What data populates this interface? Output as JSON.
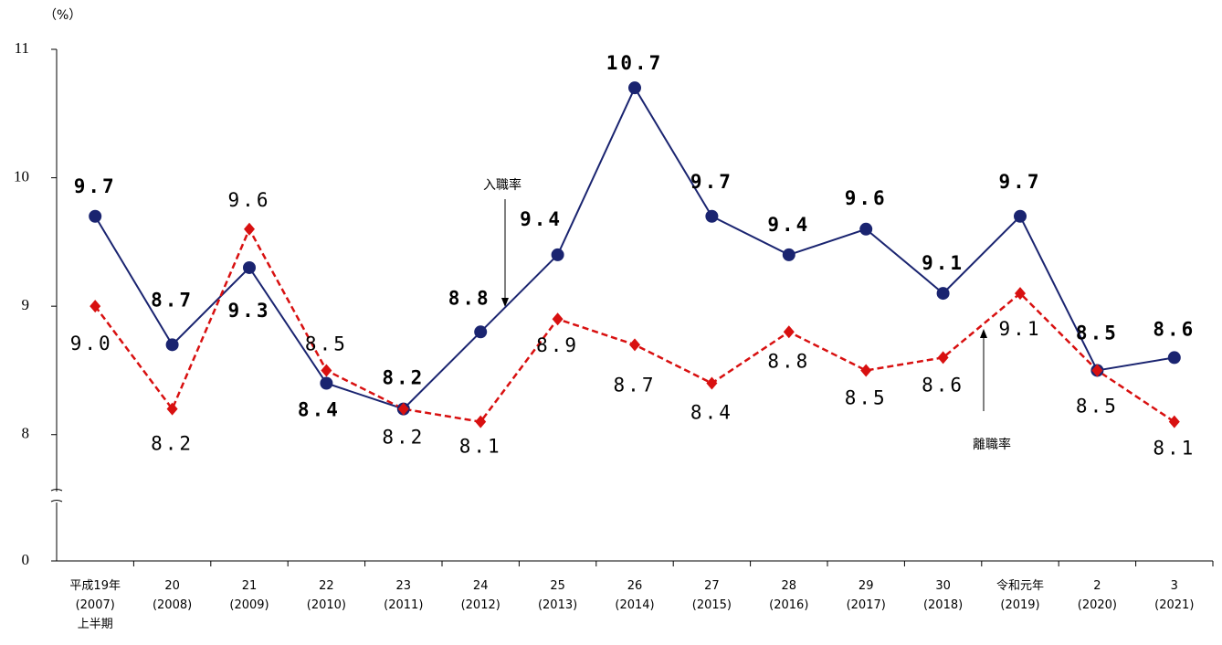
{
  "chart_data": {
    "type": "line",
    "y_unit": "（%）",
    "categories": [
      "平成19年\n(2007)\n上半期",
      "20\n(2008)",
      "21\n(2009)",
      "22\n(2010)",
      "23\n(2011)",
      "24\n(2012)",
      "25\n(2013)",
      "26\n(2014)",
      "27\n(2015)",
      "28\n(2016)",
      "29\n(2017)",
      "30\n(2018)",
      "令和元年\n(2019)",
      "2\n(2020)",
      "3\n(2021)"
    ],
    "series": [
      {
        "name": "入職率",
        "color": "#1a2470",
        "marker": "circle",
        "dashed": false,
        "values": [
          9.7,
          8.7,
          9.3,
          8.4,
          8.2,
          8.8,
          9.4,
          10.7,
          9.7,
          9.4,
          9.6,
          9.1,
          9.7,
          8.5,
          8.6
        ]
      },
      {
        "name": "離職率",
        "color": "#d81010",
        "marker": "diamond",
        "dashed": true,
        "values": [
          9.0,
          8.2,
          9.6,
          8.5,
          8.2,
          8.1,
          8.9,
          8.7,
          8.4,
          8.8,
          8.5,
          8.6,
          9.1,
          8.5,
          8.1
        ],
        "value_labels": [
          "9.0",
          "8.2",
          "9.6",
          "8.5",
          "8.2",
          "8.1",
          "8.9",
          "8.7",
          "8.4",
          "8.8",
          "8.5",
          "8.6",
          "9.1",
          "8.5",
          "8.1"
        ]
      }
    ],
    "ylim": [
      7.55,
      11
    ],
    "yticks": [
      0,
      8,
      9,
      10,
      11
    ],
    "axis_break": true,
    "grid": false
  }
}
